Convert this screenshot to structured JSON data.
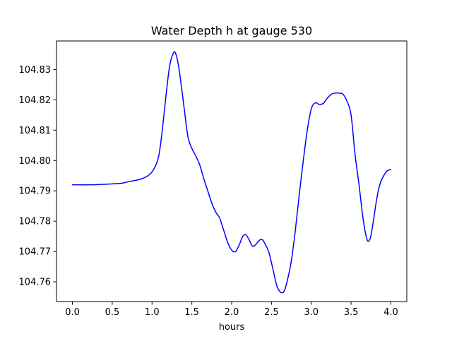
{
  "chart_data": {
    "type": "line",
    "title": "Water Depth h at gauge 530",
    "xlabel": "hours",
    "ylabel": "",
    "xlim": [
      -0.2,
      4.2
    ],
    "ylim": [
      104.7535,
      104.8394
    ],
    "grid": false,
    "legend": "none",
    "x_ticks": [
      0.0,
      0.5,
      1.0,
      1.5,
      2.0,
      2.5,
      3.0,
      3.5,
      4.0
    ],
    "x_tick_labels": [
      "0.0",
      "0.5",
      "1.0",
      "1.5",
      "2.0",
      "2.5",
      "3.0",
      "3.5",
      "4.0"
    ],
    "y_ticks": [
      104.76,
      104.77,
      104.78,
      104.79,
      104.8,
      104.81,
      104.82,
      104.83
    ],
    "y_tick_labels": [
      "104.76",
      "104.77",
      "104.78",
      "104.79",
      "104.80",
      "104.81",
      "104.82",
      "104.83"
    ],
    "series": [
      {
        "color": "#0000ff",
        "x": [
          0.0,
          0.25,
          0.5,
          0.62,
          0.7,
          0.85,
          0.95,
          1.02,
          1.08,
          1.12,
          1.17,
          1.22,
          1.27,
          1.3,
          1.34,
          1.4,
          1.45,
          1.5,
          1.55,
          1.6,
          1.65,
          1.7,
          1.75,
          1.8,
          1.85,
          1.9,
          1.95,
          2.0,
          2.05,
          2.1,
          2.14,
          2.18,
          2.22,
          2.26,
          2.3,
          2.34,
          2.38,
          2.42,
          2.47,
          2.52,
          2.57,
          2.62,
          2.66,
          2.7,
          2.75,
          2.8,
          2.85,
          2.9,
          2.95,
          3.0,
          3.05,
          3.1,
          3.15,
          3.2,
          3.25,
          3.3,
          3.35,
          3.4,
          3.45,
          3.5,
          3.55,
          3.6,
          3.65,
          3.7,
          3.74,
          3.78,
          3.82,
          3.86,
          3.9,
          3.95,
          4.0
        ],
        "y": [
          104.792,
          104.792,
          104.7923,
          104.7925,
          104.793,
          104.7938,
          104.795,
          104.797,
          104.801,
          104.808,
          104.82,
          104.831,
          104.8355,
          104.835,
          104.83,
          104.818,
          104.808,
          104.804,
          104.8015,
          104.7985,
          104.794,
          104.79,
          104.786,
          104.783,
          104.781,
          104.777,
          104.773,
          104.7705,
          104.77,
          104.7725,
          104.775,
          104.7755,
          104.7738,
          104.7718,
          104.7722,
          104.7735,
          104.774,
          104.7725,
          104.7695,
          104.764,
          104.7585,
          104.7565,
          104.757,
          104.7605,
          104.767,
          104.777,
          104.789,
          104.8,
          104.81,
          104.817,
          104.819,
          104.8185,
          104.8188,
          104.8205,
          104.8218,
          104.8222,
          104.8222,
          104.8218,
          104.8195,
          104.815,
          104.802,
          104.792,
          104.781,
          104.774,
          104.7743,
          104.78,
          104.787,
          104.792,
          104.7945,
          104.7965,
          104.797
        ]
      }
    ]
  }
}
